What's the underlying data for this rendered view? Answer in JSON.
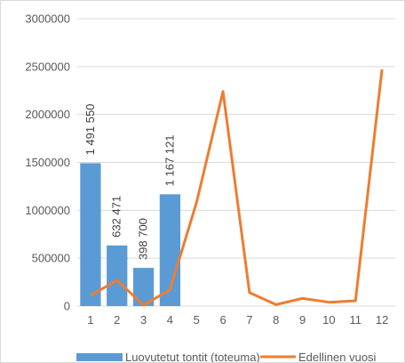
{
  "chart_data": {
    "type": "bar",
    "categories": [
      "1",
      "2",
      "3",
      "4",
      "5",
      "6",
      "7",
      "8",
      "9",
      "10",
      "11",
      "12"
    ],
    "ylim": [
      0,
      3000000
    ],
    "yticks": [
      0,
      500000,
      1000000,
      1500000,
      2000000,
      2500000,
      3000000
    ],
    "ytick_labels": [
      "0",
      "500000",
      "1000000",
      "1500000",
      "2000000",
      "2500000",
      "3000000"
    ],
    "grid": true,
    "legend_position": "bottom",
    "series": [
      {
        "name": "Luovutetut tontit (toteuma)",
        "type": "bar",
        "color": "#5b9bd5",
        "values": [
          1491550,
          632471,
          398700,
          1167121,
          null,
          null,
          null,
          null,
          null,
          null,
          null,
          null
        ],
        "labels": [
          "1 491 550",
          "632 471",
          "398 700",
          "1 167 121",
          "",
          "",
          "",
          "",
          "",
          "",
          "",
          ""
        ]
      },
      {
        "name": "Edellinen vuosi",
        "type": "line",
        "color": "#ed7d31",
        "values": [
          110000,
          270000,
          10000,
          170000,
          1080000,
          2240000,
          140000,
          15000,
          80000,
          40000,
          55000,
          2470000
        ]
      }
    ]
  }
}
